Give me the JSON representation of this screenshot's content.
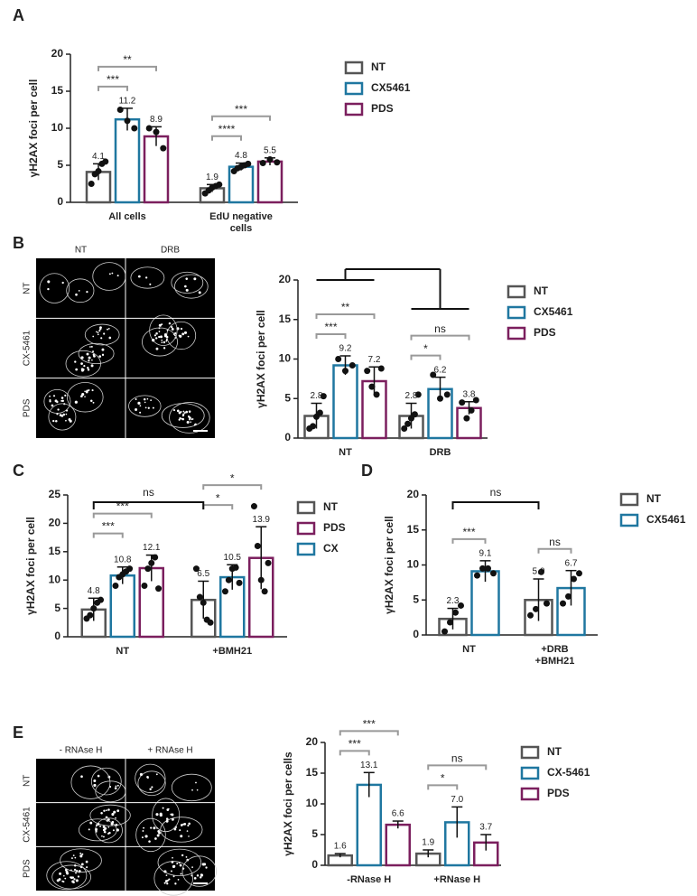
{
  "panel_letters": [
    "A",
    "B",
    "C",
    "D",
    "E"
  ],
  "micrographs": [
    {
      "columns": [
        "NT",
        "DRB"
      ],
      "rows": [
        "NT",
        "CX-5461",
        "PDS"
      ]
    },
    {
      "columns": [
        "- RNAse H",
        "+ RNAse H"
      ],
      "rows": [
        "NT",
        "CX-5461",
        "PDS"
      ]
    }
  ],
  "chart_data": [
    {
      "type": "bar",
      "ylabel": "γH2AX foci per cell",
      "categories": [
        "All cells",
        "EdU negative\ncells"
      ],
      "ylim": [
        0,
        20
      ],
      "yticks": [
        0,
        5,
        10,
        15,
        20
      ],
      "series": [
        {
          "name": "NT",
          "color": "#555555",
          "values": [
            4.1,
            1.9
          ],
          "value_labels": [
            "4.1",
            "1.9"
          ],
          "errors": [
            1.1,
            0.5
          ],
          "points": [
            [
              2.5,
              3.8,
              4.2,
              5.2,
              5.5
            ],
            [
              1.2,
              1.6,
              2.0,
              2.2,
              2.4
            ]
          ]
        },
        {
          "name": "CX5461",
          "color": "#1f77a0",
          "values": [
            11.2,
            4.8
          ],
          "value_labels": [
            "11.2",
            "4.8"
          ],
          "errors": [
            1.5,
            0.5
          ],
          "points": [
            [
              12.5,
              11,
              10
            ],
            [
              4.2,
              4.6,
              4.8,
              5,
              5.2
            ]
          ]
        },
        {
          "name": "PDS",
          "color": "#7b1f5e",
          "values": [
            8.9,
            5.5
          ],
          "value_labels": [
            "8.9",
            "5.5"
          ],
          "errors": [
            1.3,
            0.5
          ],
          "points": [
            [
              10,
              9.5,
              7.3
            ],
            [
              5.3,
              5.8,
              5.4
            ]
          ]
        }
      ],
      "brackets": [
        {
          "category": 0,
          "pair": [
            0,
            1
          ],
          "label": "***"
        },
        {
          "category": 0,
          "pair": [
            0,
            2
          ],
          "label": "**"
        },
        {
          "category": 1,
          "pair": [
            0,
            1
          ],
          "label": "****"
        },
        {
          "category": 1,
          "pair": [
            0,
            2
          ],
          "label": "***"
        }
      ]
    },
    {
      "type": "bar",
      "ylabel": "γH2AX foci per cell",
      "categories": [
        "NT",
        "DRB"
      ],
      "ylim": [
        0,
        20
      ],
      "yticks": [
        0,
        5,
        10,
        15,
        20
      ],
      "series": [
        {
          "name": "NT",
          "color": "#555555",
          "values": [
            2.8,
            2.8
          ],
          "value_labels": [
            "2.8",
            "2.8"
          ],
          "errors": [
            1.6,
            1.6
          ],
          "points": [
            [
              1.2,
              1.5,
              2.7,
              3.2,
              5.3
            ],
            [
              1.2,
              1.8,
              2.5,
              3.0,
              5.5
            ]
          ]
        },
        {
          "name": "CX5461",
          "color": "#1f77a0",
          "values": [
            9.2,
            6.2
          ],
          "value_labels": [
            "9.2",
            "6.2"
          ],
          "errors": [
            1.2,
            1.5
          ],
          "points": [
            [
              10,
              8.5,
              9.2
            ],
            [
              8,
              5,
              5.5
            ]
          ]
        },
        {
          "name": "PDS",
          "color": "#7b1f5e",
          "values": [
            7.2,
            3.8
          ],
          "value_labels": [
            "7.2",
            "3.8"
          ],
          "errors": [
            1.8,
            0.8
          ],
          "points": [
            [
              8.5,
              6.5,
              5.5,
              8.8
            ],
            [
              4.5,
              2.5,
              3.5,
              4.8
            ]
          ]
        }
      ],
      "brackets": [
        {
          "category": 0,
          "pair": [
            0,
            1
          ],
          "label": "***"
        },
        {
          "category": 0,
          "pair": [
            0,
            2
          ],
          "label": "**"
        },
        {
          "category": 1,
          "pair": [
            0,
            1
          ],
          "label": "*"
        },
        {
          "category": 1,
          "pair": [
            0,
            2
          ],
          "label": "ns"
        }
      ],
      "group_bracket": {
        "style": "tree"
      }
    },
    {
      "type": "bar",
      "ylabel": "γH2AX foci per cell",
      "categories": [
        "NT",
        "+BMH21"
      ],
      "ylim": [
        0,
        25
      ],
      "yticks": [
        0,
        5,
        10,
        15,
        20,
        25
      ],
      "legend_order": [
        0,
        2,
        1
      ],
      "series": [
        {
          "name": "NT",
          "color": "#555555",
          "values": [
            4.8,
            6.5
          ],
          "value_labels": [
            "4.8",
            "6.5"
          ],
          "errors": [
            2.0,
            3.3
          ],
          "points": [
            [
              3.2,
              3.8,
              5,
              6,
              6.5
            ],
            [
              12,
              7,
              6,
              3,
              2.5
            ]
          ]
        },
        {
          "name": "CX",
          "color": "#1f77a0",
          "values": [
            10.8,
            10.5
          ],
          "value_labels": [
            "10.8",
            "10.5"
          ],
          "errors": [
            1.5,
            2.2
          ],
          "points": [
            [
              9,
              10.5,
              11,
              11.5,
              12
            ],
            [
              8,
              10,
              12,
              12.2,
              9.5
            ]
          ]
        },
        {
          "name": "PDS",
          "color": "#7b1f5e",
          "values": [
            12.1,
            13.9
          ],
          "value_labels": [
            "12.1",
            "13.9"
          ],
          "errors": [
            2.3,
            5.5
          ],
          "points": [
            [
              9,
              12,
              13,
              14,
              8.5
            ],
            [
              23,
              16,
              10,
              8,
              13
            ]
          ]
        }
      ],
      "brackets": [
        {
          "category": 0,
          "pair": [
            0,
            1
          ],
          "label": "***"
        },
        {
          "category": 0,
          "pair": [
            0,
            2
          ],
          "label": "***"
        },
        {
          "category": 1,
          "pair": [
            0,
            1
          ],
          "label": "*"
        },
        {
          "category": 1,
          "pair": [
            0,
            2
          ],
          "label": "*"
        }
      ],
      "group_bracket": {
        "style": "span",
        "label": "ns"
      }
    },
    {
      "type": "bar",
      "ylabel": "γH2AX foci per cell",
      "categories": [
        "NT",
        "+DRB\n+BMH21"
      ],
      "ylim": [
        0,
        20
      ],
      "yticks": [
        0,
        5,
        10,
        15,
        20
      ],
      "series": [
        {
          "name": "NT",
          "color": "#555555",
          "values": [
            2.3,
            5.0
          ],
          "value_labels": [
            "2.3",
            "5.0"
          ],
          "errors": [
            1.5,
            3.0
          ],
          "points": [
            [
              0.5,
              1.8,
              3.2,
              4.2
            ],
            [
              2.8,
              3.7,
              9,
              4.5
            ]
          ]
        },
        {
          "name": "CX5461",
          "color": "#1f77a0",
          "values": [
            9.1,
            6.7
          ],
          "value_labels": [
            "9.1",
            "6.7"
          ],
          "errors": [
            1.5,
            2.5
          ],
          "points": [
            [
              8.5,
              9.5,
              9.5,
              8.8
            ],
            [
              4.5,
              5.5,
              8,
              8.8
            ]
          ]
        }
      ],
      "brackets": [
        {
          "category": 0,
          "pair": [
            0,
            1
          ],
          "label": "***"
        },
        {
          "category": 1,
          "pair": [
            0,
            1
          ],
          "label": "ns"
        }
      ],
      "group_bracket": {
        "style": "span",
        "label": "ns"
      }
    },
    {
      "type": "bar",
      "ylabel": "γH2AX foci per cells",
      "categories": [
        "-RNase H",
        "+RNase H"
      ],
      "ylim": [
        0,
        20
      ],
      "yticks": [
        0,
        5,
        10,
        15,
        20
      ],
      "series": [
        {
          "name": "NT",
          "color": "#555555",
          "values": [
            1.6,
            1.9
          ],
          "value_labels": [
            "1.6",
            "1.9"
          ],
          "errors": [
            0.3,
            0.6
          ]
        },
        {
          "name": "CX-5461",
          "color": "#1f77a0",
          "values": [
            13.1,
            7.0
          ],
          "value_labels": [
            "13.1",
            "7.0"
          ],
          "errors": [
            2.0,
            2.5
          ]
        },
        {
          "name": "PDS",
          "color": "#7b1f5e",
          "values": [
            6.6,
            3.7
          ],
          "value_labels": [
            "6.6",
            "3.7"
          ],
          "errors": [
            0.6,
            1.3
          ]
        }
      ],
      "brackets": [
        {
          "category": 0,
          "pair": [
            0,
            1
          ],
          "label": "***"
        },
        {
          "category": 0,
          "pair": [
            0,
            2
          ],
          "label": "***"
        },
        {
          "category": 1,
          "pair": [
            0,
            1
          ],
          "label": "*"
        },
        {
          "category": 1,
          "pair": [
            0,
            2
          ],
          "label": "ns"
        }
      ]
    }
  ]
}
